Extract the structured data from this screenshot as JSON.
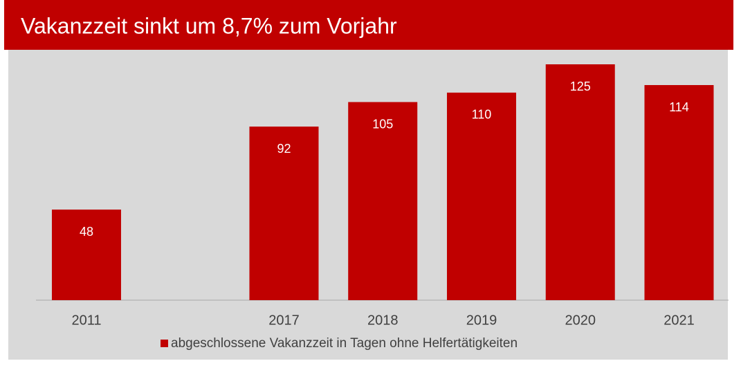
{
  "chart_data": {
    "type": "bar",
    "title": "Vakanzzeit sinkt um 8,7% zum Vorjahr",
    "categories": [
      "2011",
      null,
      "2017",
      "2018",
      "2019",
      "2020",
      "2021"
    ],
    "series": [
      {
        "name": "abgeschlossene Vakanzzeit in Tagen ohne Helfertätigkeiten",
        "color": "#c00000",
        "values": [
          48,
          null,
          92,
          105,
          110,
          125,
          114
        ]
      }
    ]
  }
}
